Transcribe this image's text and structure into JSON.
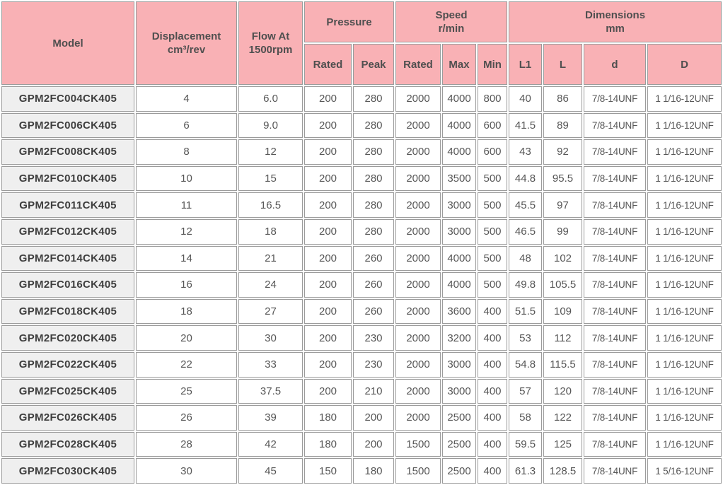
{
  "colors": {
    "header_bg": "#f9b1b5",
    "model_bg": "#efefef",
    "border": "#9b9b9b",
    "header_text": "#4f4f4f",
    "cell_text": "#565656",
    "model_text": "#3e3e3e"
  },
  "table": {
    "header": {
      "model": "Model",
      "displacement_line1": "Displacement",
      "displacement_line2": "cm³/rev",
      "flow_line1": "Flow At",
      "flow_line2": "1500rpm",
      "pressure": "Pressure",
      "pressure_sub": [
        "Rated",
        "Peak"
      ],
      "speed_line1": "Speed",
      "speed_line2": "r/min",
      "speed_sub": [
        "Rated",
        "Max",
        "Min"
      ],
      "dimensions_line1": "Dimensions",
      "dimensions_line2": "mm",
      "dimensions_sub": [
        "L1",
        "L",
        "d",
        "D"
      ]
    },
    "column_keys": [
      "model",
      "displacement",
      "flow",
      "pressure-rated",
      "pressure-peak",
      "speed-rated",
      "speed-max",
      "speed-min",
      "dim-l1",
      "dim-l",
      "dim-d",
      "dim-d-major"
    ],
    "rows": [
      [
        "GPM2FC004CK405",
        "4",
        "6.0",
        "200",
        "280",
        "2000",
        "4000",
        "800",
        "40",
        "86",
        "7/8-14UNF",
        "1 1/16-12UNF"
      ],
      [
        "GPM2FC006CK405",
        "6",
        "9.0",
        "200",
        "280",
        "2000",
        "4000",
        "600",
        "41.5",
        "89",
        "7/8-14UNF",
        "1 1/16-12UNF"
      ],
      [
        "GPM2FC008CK405",
        "8",
        "12",
        "200",
        "280",
        "2000",
        "4000",
        "600",
        "43",
        "92",
        "7/8-14UNF",
        "1 1/16-12UNF"
      ],
      [
        "GPM2FC010CK405",
        "10",
        "15",
        "200",
        "280",
        "2000",
        "3500",
        "500",
        "44.8",
        "95.5",
        "7/8-14UNF",
        "1 1/16-12UNF"
      ],
      [
        "GPM2FC011CK405",
        "11",
        "16.5",
        "200",
        "280",
        "2000",
        "3000",
        "500",
        "45.5",
        "97",
        "7/8-14UNF",
        "1 1/16-12UNF"
      ],
      [
        "GPM2FC012CK405",
        "12",
        "18",
        "200",
        "280",
        "2000",
        "3000",
        "500",
        "46.5",
        "99",
        "7/8-14UNF",
        "1 1/16-12UNF"
      ],
      [
        "GPM2FC014CK405",
        "14",
        "21",
        "200",
        "260",
        "2000",
        "4000",
        "500",
        "48",
        "102",
        "7/8-14UNF",
        "1 1/16-12UNF"
      ],
      [
        "GPM2FC016CK405",
        "16",
        "24",
        "200",
        "260",
        "2000",
        "4000",
        "500",
        "49.8",
        "105.5",
        "7/8-14UNF",
        "1 1/16-12UNF"
      ],
      [
        "GPM2FC018CK405",
        "18",
        "27",
        "200",
        "260",
        "2000",
        "3600",
        "400",
        "51.5",
        "109",
        "7/8-14UNF",
        "1 1/16-12UNF"
      ],
      [
        "GPM2FC020CK405",
        "20",
        "30",
        "200",
        "230",
        "2000",
        "3200",
        "400",
        "53",
        "112",
        "7/8-14UNF",
        "1 1/16-12UNF"
      ],
      [
        "GPM2FC022CK405",
        "22",
        "33",
        "200",
        "230",
        "2000",
        "3000",
        "400",
        "54.8",
        "115.5",
        "7/8-14UNF",
        "1 1/16-12UNF"
      ],
      [
        "GPM2FC025CK405",
        "25",
        "37.5",
        "200",
        "210",
        "2000",
        "3000",
        "400",
        "57",
        "120",
        "7/8-14UNF",
        "1 1/16-12UNF"
      ],
      [
        "GPM2FC026CK405",
        "26",
        "39",
        "180",
        "200",
        "2000",
        "2500",
        "400",
        "58",
        "122",
        "7/8-14UNF",
        "1 1/16-12UNF"
      ],
      [
        "GPM2FC028CK405",
        "28",
        "42",
        "180",
        "200",
        "1500",
        "2500",
        "400",
        "59.5",
        "125",
        "7/8-14UNF",
        "1 1/16-12UNF"
      ],
      [
        "GPM2FC030CK405",
        "30",
        "45",
        "150",
        "180",
        "1500",
        "2500",
        "400",
        "61.3",
        "128.5",
        "7/8-14UNF",
        "1 5/16-12UNF"
      ]
    ]
  }
}
